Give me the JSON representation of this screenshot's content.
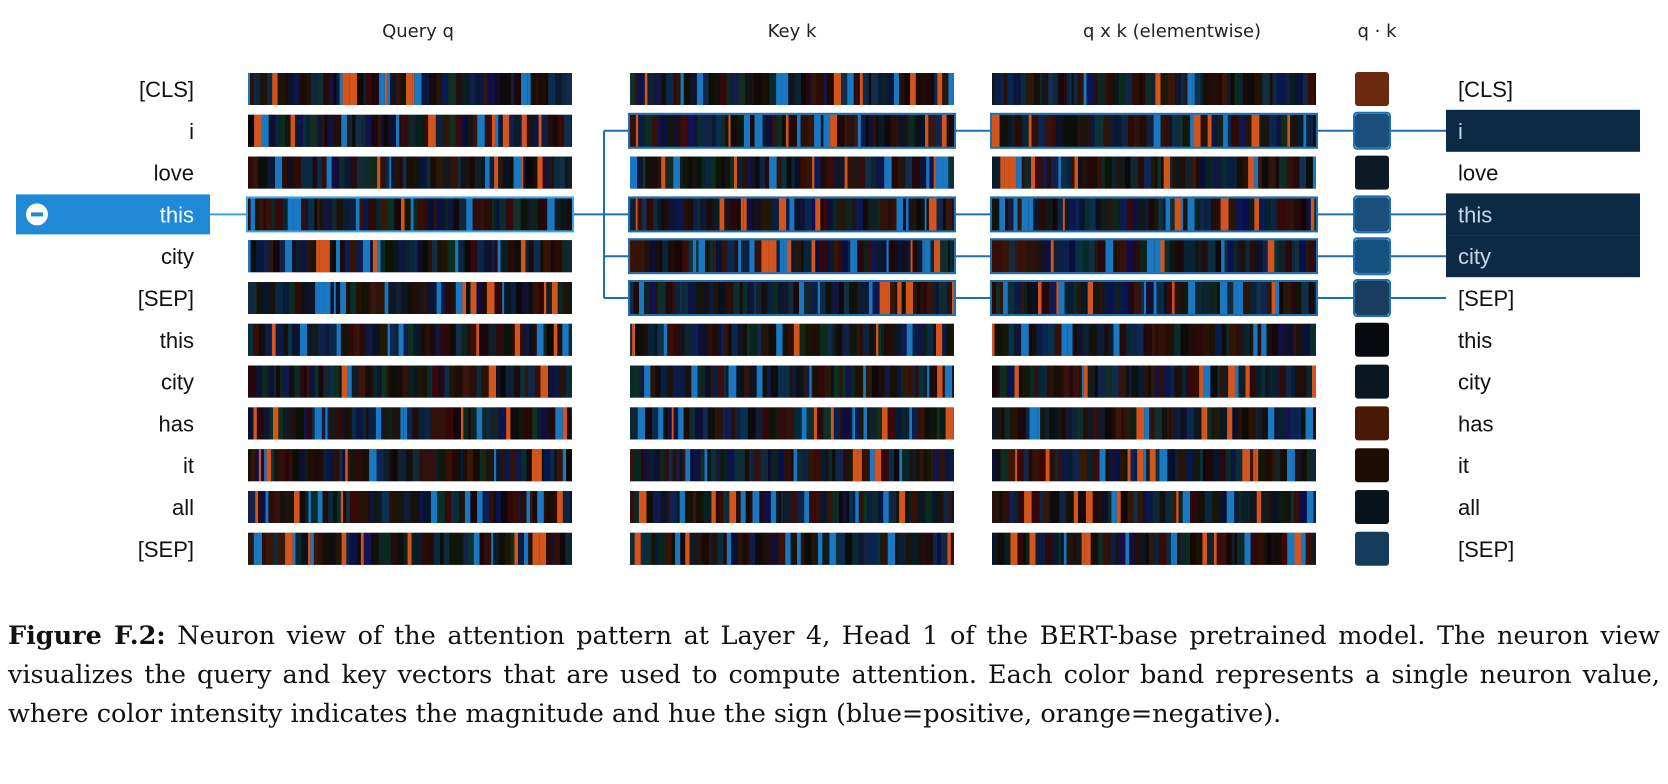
{
  "headers": {
    "query": "Query q",
    "key": "Key k",
    "product": "q x k (elementwise)",
    "dot": "q · k"
  },
  "tokens": [
    "[CLS]",
    "i",
    "love",
    "this",
    "city",
    "[SEP]",
    "this",
    "city",
    "has",
    "it",
    "all",
    "[SEP]"
  ],
  "selected_token_index": 3,
  "highlighted_right_indices": [
    1,
    3,
    4
  ],
  "connected_key_indices": [
    1,
    3,
    4,
    5
  ],
  "dot_colors": [
    "#6b2a10",
    "#1a4f7c",
    "#0d1a26",
    "#1a4f7c",
    "#16507f",
    "#183d5e",
    "#060a0e",
    "#0a1620",
    "#4a1a08",
    "#1e0d05",
    "#08131c",
    "#163c5c"
  ],
  "colors": {
    "selected_bg": "#1f89d6",
    "highlight_bg": "#0d2a45",
    "connector": "#1f6fae",
    "positive": "#1a78c2",
    "negative": "#d4541e"
  },
  "caption": {
    "label": "Figure F.2:",
    "text": "Neuron view of the attention pattern at Layer 4, Head 1 of the BERT-base pretrained model. The neuron view visualizes the query and key vectors that are used to compute attention. Each color band represents a single neuron value, where color intensity indicates the magnitude and hue the sign (blue=positive, orange=negative)."
  }
}
